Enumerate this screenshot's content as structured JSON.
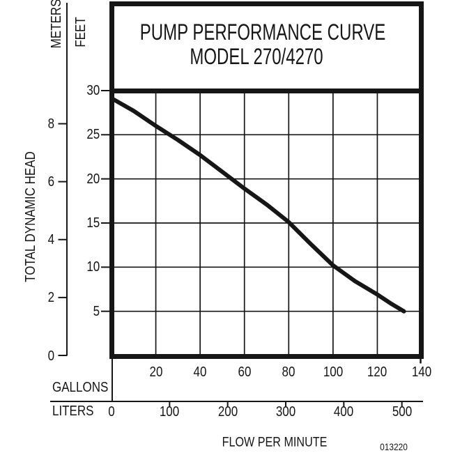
{
  "colors": {
    "ink": "#161616",
    "background": "#ffffff"
  },
  "title": {
    "line1": "PUMP PERFORMANCE CURVE",
    "line2": "MODEL 270/4270"
  },
  "y_axis": {
    "outer_unit": "METERS",
    "inner_unit": "FEET",
    "axis_title": "TOTAL DYNAMIC HEAD",
    "meters_tick_labels": [
      8,
      6,
      4,
      2,
      0
    ],
    "feet_tick_labels": [
      30,
      25,
      20,
      15,
      10,
      5
    ]
  },
  "x_axis": {
    "upper_unit": "GALLONS",
    "lower_unit": "LITERS",
    "axis_title": "FLOW PER MINUTE",
    "gallons_tick_labels": [
      20,
      40,
      60,
      80,
      100,
      120,
      140
    ],
    "liters_tick_labels": [
      0,
      100,
      200,
      300,
      400,
      500
    ]
  },
  "footnote": "013220",
  "chart_data": {
    "type": "line",
    "title": "PUMP PERFORMANCE CURVE",
    "subtitle": "MODEL 270/4270",
    "xlabel": "FLOW PER MINUTE",
    "ylabel": "TOTAL DYNAMIC HEAD",
    "x_units": [
      "GALLONS",
      "LITERS"
    ],
    "y_units": [
      "FEET",
      "METERS"
    ],
    "x_range_gallons": [
      0,
      140
    ],
    "y_range_feet": [
      0,
      30
    ],
    "gallons_ticks": [
      20,
      40,
      60,
      80,
      100,
      120,
      140
    ],
    "liters_ticks": [
      0,
      100,
      200,
      300,
      400,
      500
    ],
    "feet_ticks": [
      5,
      10,
      15,
      20,
      25,
      30
    ],
    "meters_ticks": [
      0,
      2,
      4,
      6,
      8
    ],
    "grid": true,
    "legend": "none",
    "series": [
      {
        "name": "MODEL 270/4270",
        "points_gallons_feet": [
          [
            0,
            29.0
          ],
          [
            10,
            27.7
          ],
          [
            20,
            26.0
          ],
          [
            30,
            24.4
          ],
          [
            40,
            22.7
          ],
          [
            50,
            20.8
          ],
          [
            60,
            18.9
          ],
          [
            70,
            17.1
          ],
          [
            80,
            15.1
          ],
          [
            90,
            12.6
          ],
          [
            100,
            10.2
          ],
          [
            110,
            8.4
          ],
          [
            120,
            6.9
          ],
          [
            126,
            5.9
          ],
          [
            132,
            5.0
          ]
        ]
      }
    ],
    "footnote": "013220"
  }
}
